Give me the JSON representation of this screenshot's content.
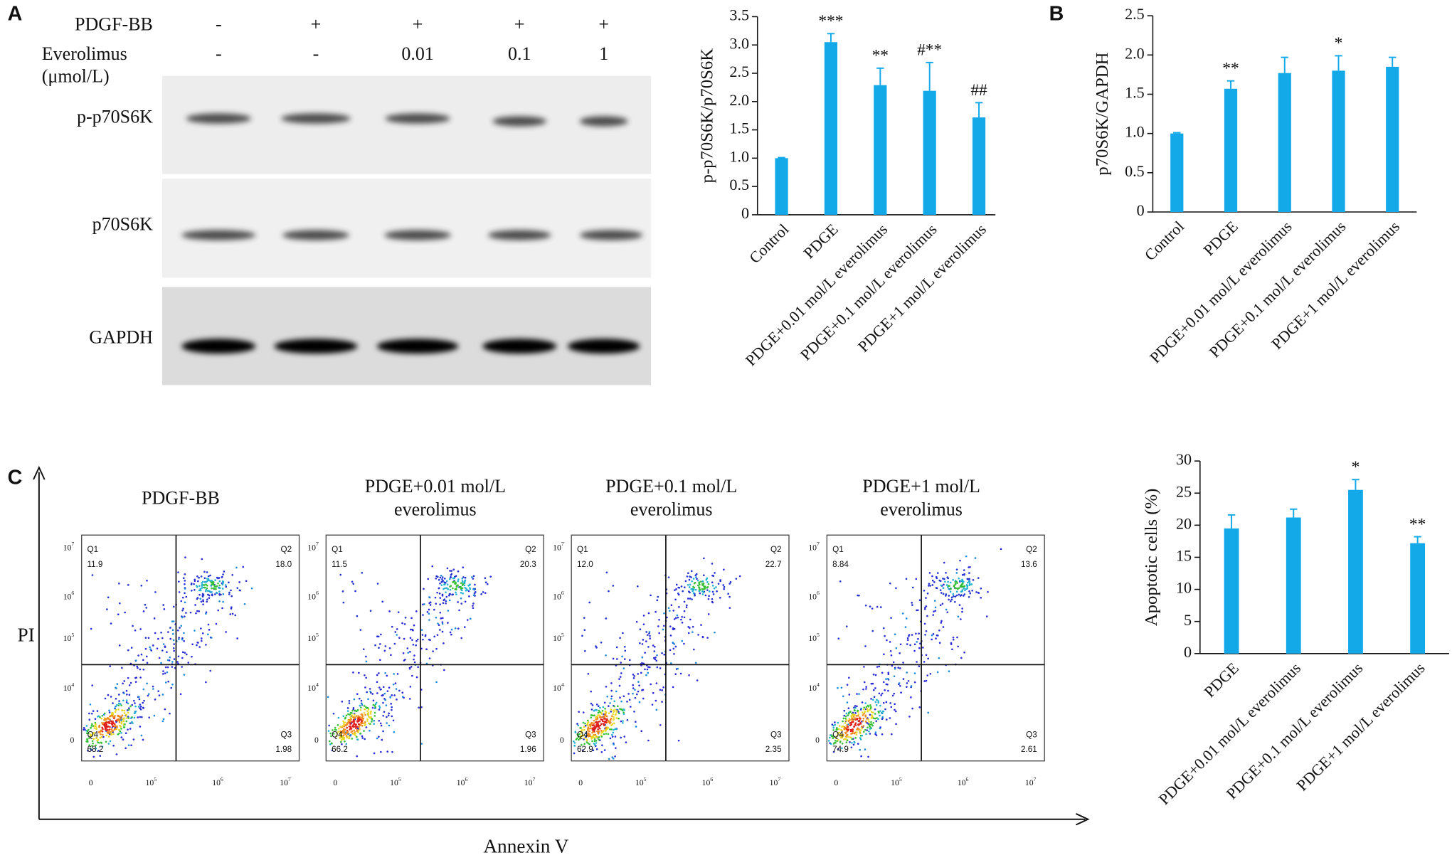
{
  "panel_labels": [
    "A",
    "B",
    "C"
  ],
  "blot": {
    "rows": [
      {
        "label": [
          "PDGF-BB"
        ],
        "values": [
          "-",
          "+",
          "+",
          "+",
          "+"
        ]
      },
      {
        "label": [
          "Everolimus",
          "(μmol/L)"
        ],
        "values": [
          "-",
          "-",
          "0.01",
          "0.1",
          "1"
        ]
      }
    ],
    "bands": [
      "p-p70S6K",
      "p70S6K",
      "GAPDH"
    ]
  },
  "flow": {
    "y_label": "PI",
    "x_label": "Annexin V",
    "quadrant_names": [
      "Q1",
      "Q2",
      "Q3",
      "Q4"
    ],
    "y_ticks": [
      {
        "base": "10",
        "exp": "7"
      },
      {
        "base": "10",
        "exp": "6"
      },
      {
        "base": "10",
        "exp": "5"
      },
      {
        "base": "10",
        "exp": "4"
      },
      {
        "base": "0"
      }
    ],
    "x_ticks": [
      {
        "base": "0"
      },
      {
        "base": "10",
        "exp": "5"
      },
      {
        "base": "10",
        "exp": "6"
      },
      {
        "base": "10",
        "exp": "7"
      }
    ],
    "plots": [
      {
        "title": [
          "PDGF-BB"
        ],
        "quadrants": [
          "11.9",
          "18.0",
          "1.98",
          "68.2"
        ]
      },
      {
        "title": [
          "PDGE+0.01 mol/L",
          "everolimus"
        ],
        "quadrants": [
          "11.5",
          "20.3",
          "1.96",
          "66.2"
        ]
      },
      {
        "title": [
          "PDGE+0.1 mol/L",
          "everolimus"
        ],
        "quadrants": [
          "12.0",
          "22.7",
          "2.35",
          "62.9"
        ]
      },
      {
        "title": [
          "PDGE+1 mol/L",
          "everolimus"
        ],
        "quadrants": [
          "8.84",
          "13.6",
          "2.61",
          "74.9"
        ]
      }
    ]
  },
  "chart_data": [
    {
      "type": "bar",
      "y_label": "p-p70S6K/p70S6K",
      "categories": [
        "Control",
        "PDGE",
        "PDGE+0.01 mol/L everolimus",
        "PDGE+0.1 mol/L everolimus",
        "PDGE+1 mol/L everolimus"
      ],
      "values": [
        1.0,
        3.05,
        2.29,
        2.19,
        1.72
      ],
      "errors": [
        0.01,
        0.15,
        0.3,
        0.5,
        0.26
      ],
      "annotations": [
        null,
        "***",
        "**",
        "#**",
        "##"
      ],
      "color": "#13a9e9",
      "ylim": [
        0,
        3.5
      ],
      "yticks": [
        0,
        0.5,
        {
          "value": 1,
          "label": "1.0"
        },
        1.5,
        {
          "value": 2,
          "label": "2.0"
        },
        2.5,
        {
          "value": 3,
          "label": "3.0"
        },
        3.5
      ]
    },
    {
      "type": "bar",
      "y_label": "p70S6K/GAPDH",
      "categories": [
        "Control",
        "PDGE",
        "PDGE+0.01 mol/L everolimus",
        "PDGE+0.1 mol/L everolimus",
        "PDGE+1 mol/L everolimus"
      ],
      "values": [
        1.0,
        1.57,
        1.77,
        1.8,
        1.85
      ],
      "errors": [
        0.01,
        0.1,
        0.2,
        0.19,
        0.12
      ],
      "annotations": [
        null,
        "**",
        null,
        "*",
        null
      ],
      "color": "#13a9e9",
      "ylim": [
        0,
        2.5
      ],
      "yticks": [
        0,
        0.5,
        {
          "value": 1,
          "label": "1.0"
        },
        1.5,
        {
          "value": 2,
          "label": "2.0"
        },
        2.5
      ]
    },
    {
      "type": "bar",
      "y_label": "Apoptotic cells (%)",
      "categories": [
        "PDGE",
        "PDGE+0.01 mol/L everolimus",
        "PDGE+0.1 mol/L everolimus",
        "PDGE+1 mol/L everolimus"
      ],
      "values": [
        19.5,
        21.2,
        25.5,
        17.2
      ],
      "errors": [
        2.1,
        1.3,
        1.6,
        1.0
      ],
      "annotations": [
        null,
        null,
        "*",
        "**"
      ],
      "color": "#13a9e9",
      "ylim": [
        0,
        30
      ],
      "yticks": [
        0,
        5,
        10,
        15,
        20,
        25,
        30
      ]
    }
  ]
}
